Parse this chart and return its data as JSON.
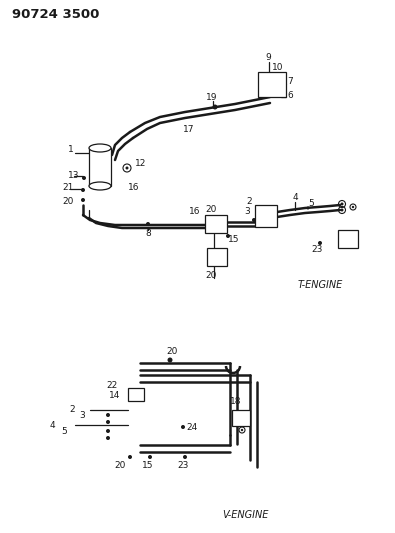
{
  "title": "90724 3500",
  "background_color": "#ffffff",
  "text_color": "#1a1a1a",
  "t_engine_label": "T-ENGINE",
  "v_engine_label": "V-ENGINE",
  "title_fontsize": 9.5,
  "label_fontsize": 6.5,
  "engine_label_fontsize": 7
}
